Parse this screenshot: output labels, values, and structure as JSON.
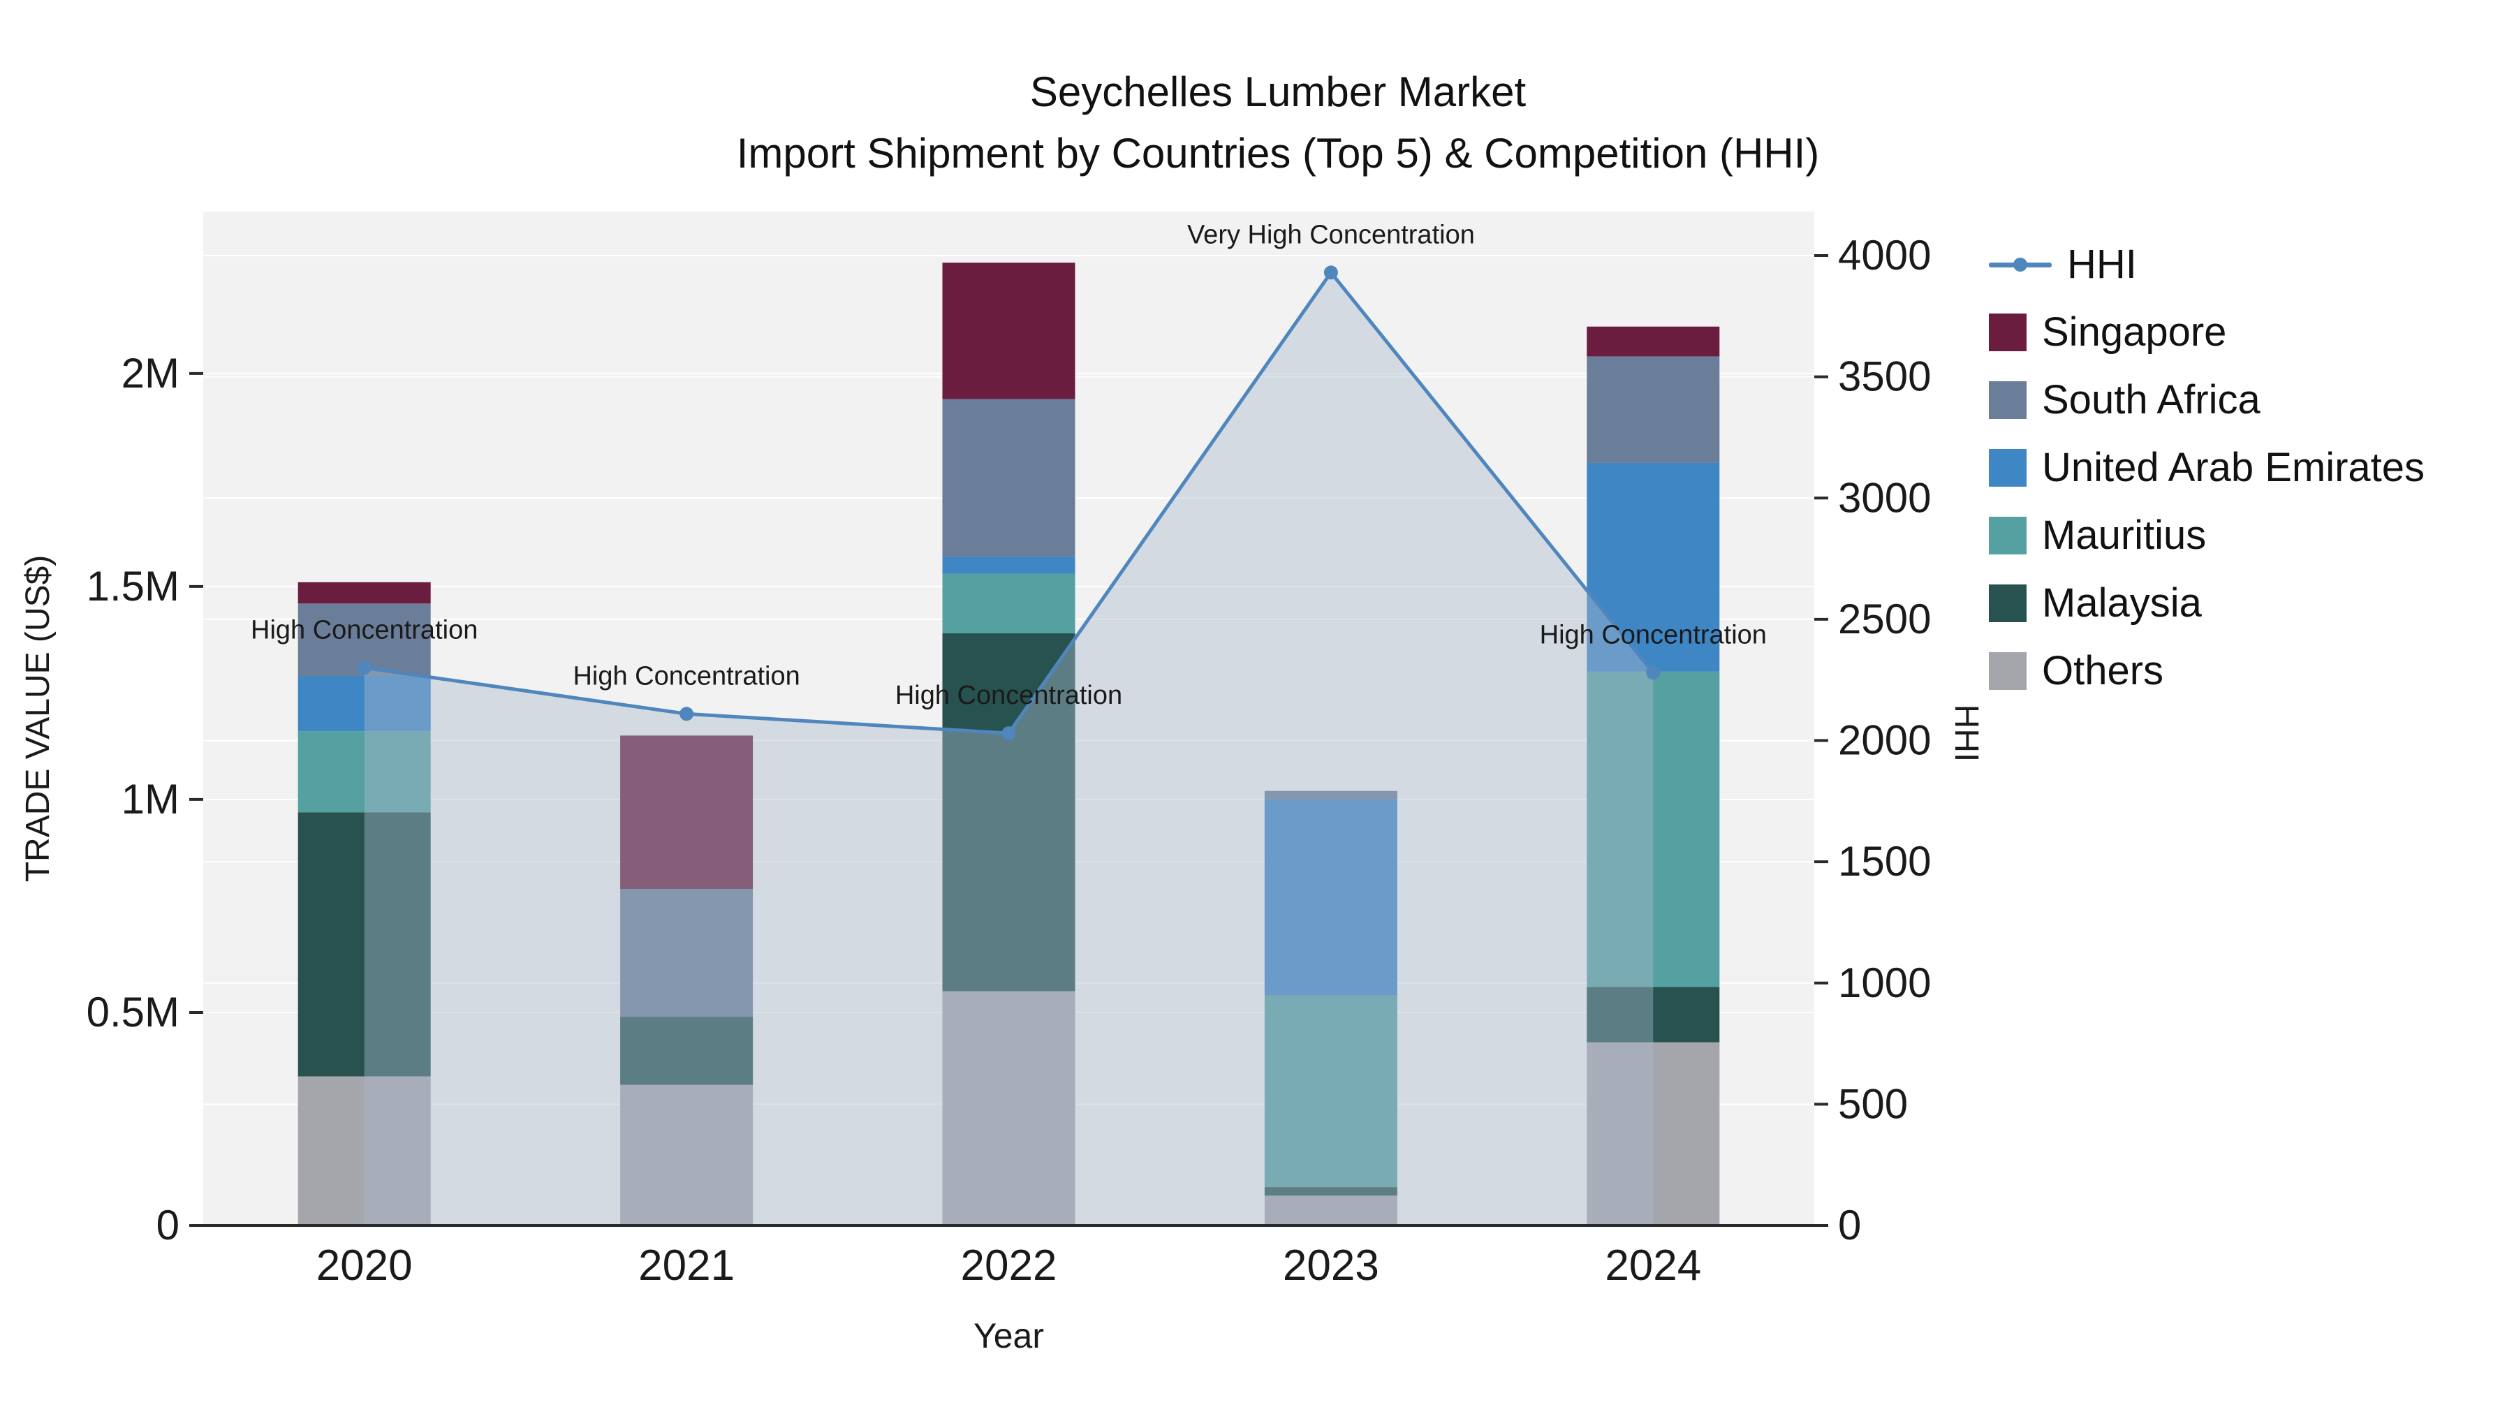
{
  "chart_data": {
    "type": "bar",
    "title": "Seychelles Lumber Market",
    "subtitle": "Import Shipment by Countries (Top 5) & Competition (HHI)",
    "xlabel": "Year",
    "ylabel_left": "TRADE VALUE (US$)",
    "ylabel_right": "HHI",
    "categories": [
      "2020",
      "2021",
      "2022",
      "2023",
      "2024"
    ],
    "series": [
      {
        "name": "Others",
        "color": "#a5a5ac",
        "values": [
          350000,
          330000,
          550000,
          70000,
          430000
        ]
      },
      {
        "name": "Malaysia",
        "color": "#275250",
        "values": [
          620000,
          160000,
          840000,
          20000,
          130000
        ]
      },
      {
        "name": "Mauritius",
        "color": "#55a0a0",
        "values": [
          190000,
          0,
          140000,
          450000,
          740000
        ]
      },
      {
        "name": "United Arab Emirates",
        "color": "#3e86c4",
        "values": [
          130000,
          0,
          40000,
          460000,
          490000
        ]
      },
      {
        "name": "South Africa",
        "color": "#6b7e99",
        "values": [
          170000,
          300000,
          370000,
          20000,
          250000
        ]
      },
      {
        "name": "Singapore",
        "color": "#6b1d3f",
        "values": [
          50000,
          360000,
          320000,
          0,
          70000
        ]
      }
    ],
    "hhi_series": {
      "name": "HHI",
      "color": "#4e86bd",
      "area_fill": "rgba(170,185,205,0.42)",
      "values": [
        2300,
        2110,
        2030,
        3930,
        2280
      ]
    },
    "annotations": [
      "High Concentration",
      "High Concentration",
      "High Concentration",
      "Very High Concentration",
      "High Concentration"
    ],
    "left_ticks": [
      {
        "v": 0,
        "label": "0"
      },
      {
        "v": 500000,
        "label": "0.5M"
      },
      {
        "v": 1000000,
        "label": "1M"
      },
      {
        "v": 1500000,
        "label": "1.5M"
      },
      {
        "v": 2000000,
        "label": "2M"
      }
    ],
    "right_ticks": [
      0,
      500,
      1000,
      1500,
      2000,
      2500,
      3000,
      3500,
      4000
    ],
    "ylim_left": [
      0,
      2380000
    ],
    "ylim_right": [
      0,
      4000
    ],
    "legend": [
      {
        "label": "HHI",
        "swatch": "line",
        "color": "#4e86bd"
      },
      {
        "label": "Singapore",
        "swatch": "square",
        "color": "#6b1d3f"
      },
      {
        "label": "South Africa",
        "swatch": "square",
        "color": "#6b7e99"
      },
      {
        "label": "United Arab Emirates",
        "swatch": "square",
        "color": "#3e86c4"
      },
      {
        "label": "Mauritius",
        "swatch": "square",
        "color": "#55a0a0"
      },
      {
        "label": "Malaysia",
        "swatch": "square",
        "color": "#275250"
      },
      {
        "label": "Others",
        "swatch": "square",
        "color": "#a5a5ac"
      }
    ],
    "plot_bg": "#f2f2f2",
    "grid_color": "#ffffff",
    "axis_color": "#2a2a2a",
    "text_color": "#1a1a1a"
  }
}
